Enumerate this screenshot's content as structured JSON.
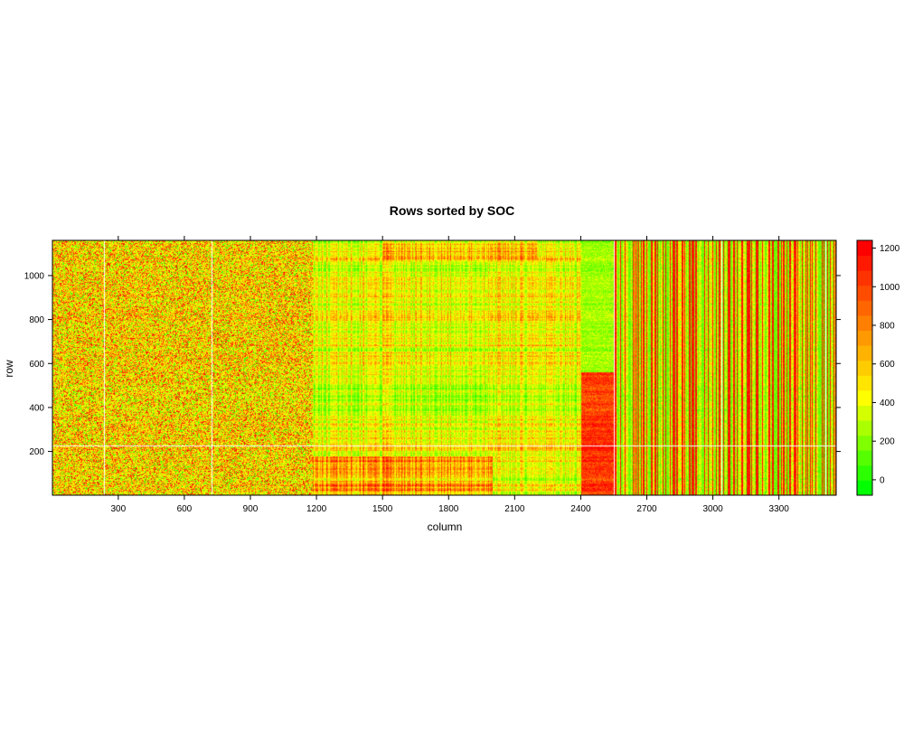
{
  "chart_data": {
    "type": "heatmap",
    "title": "Rows sorted by SOC",
    "xlabel": "column",
    "ylabel": "row",
    "x_range": [
      1,
      3560
    ],
    "y_range": [
      1,
      1160
    ],
    "x_ticks": [
      300,
      600,
      900,
      1200,
      1500,
      1800,
      2100,
      2400,
      2700,
      3000,
      3300
    ],
    "y_ticks": [
      200,
      400,
      600,
      800,
      1000
    ],
    "colorbar": {
      "range": [
        -80,
        1240
      ],
      "ticks": [
        0,
        200,
        400,
        600,
        800,
        1000,
        1200
      ],
      "colors": [
        "#00ff00",
        "#2bff00",
        "#55ff00",
        "#80ff00",
        "#aaff00",
        "#d4ff00",
        "#ffff00",
        "#ffe500",
        "#ffcc00",
        "#ffb200",
        "#ff9900",
        "#ff7f00",
        "#ff6600",
        "#ff4c00",
        "#ff3300",
        "#ff1900",
        "#ff0000"
      ]
    },
    "column_blocks": [
      {
        "x_start": 1,
        "x_end": 1180,
        "level": "mixed red-yellow-green noise"
      },
      {
        "x_start": 1180,
        "x_end": 2400,
        "level": "banded red/orange with green"
      },
      {
        "x_start": 2400,
        "x_end": 2550,
        "level": "red lower rows, green upper rows"
      },
      {
        "x_start": 2550,
        "x_end": 3560,
        "level": "vertical stripes red and green"
      }
    ],
    "white_gap_columns": [
      235,
      725,
      2550,
      3040,
      3510
    ],
    "white_gap_rows": [
      225
    ]
  }
}
